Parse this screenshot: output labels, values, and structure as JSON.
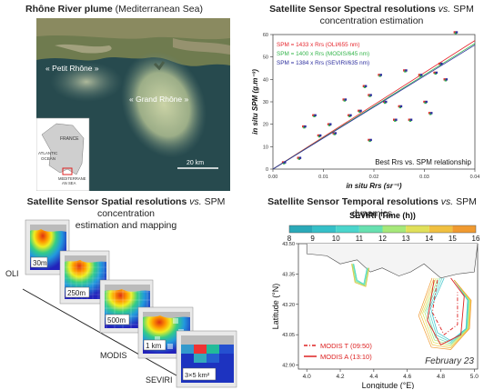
{
  "panels": {
    "tl": {
      "title_bold": "Rhône River plume",
      "title_rest": " (Mediterranean Sea)",
      "label_petit": "« Petit Rhône »",
      "label_grand": "« Grand Rhône »",
      "inset_france": "FRANCE",
      "inset_atlantic_1": "ATLANTIC",
      "inset_atlantic_2": "OCEAN",
      "inset_med_1": "MEDITERRANE",
      "inset_med_2": "AN SEA",
      "scale": "20 km"
    },
    "tr": {
      "title_bold": "Satellite Sensor Spectral resolutions",
      "title_vs": " vs.",
      "title_rest": " SPM",
      "title_line2": "concentration estimation",
      "legend": [
        {
          "text": "SPM = 1433 x Rrs (OLI/655 nm)",
          "color": "#e6262d"
        },
        {
          "text": "SPM = 1400 x Rrs (MODIS/645 nm)",
          "color": "#33b44a"
        },
        {
          "text": "SPM = 1384 x Rrs (SEVIRI/635 nm)",
          "color": "#2c2e9e"
        }
      ],
      "caption": "Best Rrs vs. SPM relationship",
      "ylabel": "in situ SPM (g.m⁻³)",
      "xlabel": "in situ Rrs (sr⁻¹)"
    },
    "bl": {
      "title_bold": "Satellite Sensor Spatial resolutions",
      "title_vs": " vs.",
      "title_rest": " SPM concentration",
      "title_line2": "estimation and mapping",
      "sensor_oli": "OLI",
      "sensor_modis": "MODIS",
      "sensor_seviri": "SEVIRI",
      "res": [
        "30m",
        "250m",
        "500m",
        "1 km",
        "3×5 km²"
      ]
    },
    "br": {
      "title_bold": "Satellite Sensor Temporal resolutions",
      "title_vs": " vs.",
      "title_rest": " SPM dynamics",
      "colorbar_title": "SEVIRI (Time (h))",
      "ylabel": "Latitude (°N)",
      "xlabel": "Longitude (°E)",
      "legend_t": "MODIS T (09:50)",
      "legend_a": "MODIS A (13:10)",
      "date": "February 23",
      "accent_red": "#d22"
    }
  },
  "chart_data": [
    {
      "type": "scatter",
      "title": "Satellite Sensor Spectral resolutions vs. SPM concentration estimation",
      "xlabel": "in situ Rrs (sr⁻¹)",
      "ylabel": "in situ SPM (g.m⁻³)",
      "xlim": [
        0,
        0.04
      ],
      "ylim": [
        0,
        60
      ],
      "xticks": [
        "0.00",
        "0.01",
        "0.02",
        "0.03",
        "0.04"
      ],
      "yticks": [
        "0",
        "10",
        "20",
        "30",
        "40",
        "50",
        "60"
      ],
      "series": [
        {
          "name": "SPM = 1433 x Rrs (OLI/655 nm)",
          "color": "#e6262d",
          "slope": 1433,
          "points": [
            [
              0.002,
              3
            ],
            [
              0.005,
              5
            ],
            [
              0.006,
              19
            ],
            [
              0.008,
              24
            ],
            [
              0.009,
              15
            ],
            [
              0.011,
              20
            ],
            [
              0.012,
              16
            ],
            [
              0.014,
              31
            ],
            [
              0.015,
              24
            ],
            [
              0.017,
              26
            ],
            [
              0.018,
              37
            ],
            [
              0.019,
              33
            ],
            [
              0.019,
              13
            ],
            [
              0.021,
              42
            ],
            [
              0.022,
              30
            ],
            [
              0.024,
              22
            ],
            [
              0.025,
              28
            ],
            [
              0.026,
              44
            ],
            [
              0.027,
              22
            ],
            [
              0.029,
              42
            ],
            [
              0.03,
              30
            ],
            [
              0.031,
              25
            ],
            [
              0.032,
              43
            ],
            [
              0.033,
              47
            ],
            [
              0.034,
              40
            ],
            [
              0.036,
              61
            ]
          ]
        },
        {
          "name": "SPM = 1400 x Rrs (MODIS/645 nm)",
          "color": "#33b44a",
          "slope": 1400,
          "points": [
            [
              0.0022,
              2.6
            ],
            [
              0.0052,
              4.6
            ],
            [
              0.0062,
              18.6
            ],
            [
              0.0082,
              23.6
            ],
            [
              0.0092,
              14.6
            ],
            [
              0.0112,
              19.6
            ],
            [
              0.0122,
              15.6
            ],
            [
              0.0142,
              30.6
            ],
            [
              0.0152,
              23.6
            ],
            [
              0.0172,
              25.6
            ],
            [
              0.0182,
              36.6
            ],
            [
              0.0192,
              32.6
            ],
            [
              0.0192,
              12.6
            ],
            [
              0.0212,
              41.6
            ],
            [
              0.0222,
              29.6
            ],
            [
              0.0242,
              21.6
            ],
            [
              0.0252,
              27.6
            ],
            [
              0.0262,
              43.6
            ],
            [
              0.0272,
              21.6
            ],
            [
              0.0292,
              41.6
            ],
            [
              0.0302,
              29.6
            ],
            [
              0.0312,
              24.6
            ],
            [
              0.0322,
              42.6
            ],
            [
              0.0332,
              46.6
            ],
            [
              0.0342,
              39.6
            ],
            [
              0.0362,
              60.6
            ]
          ]
        },
        {
          "name": "SPM = 1384 x Rrs (SEVIRI/635 nm)",
          "color": "#2c2e9e",
          "slope": 1384,
          "points": [
            [
              0.0024,
              3
            ],
            [
              0.0054,
              5
            ],
            [
              0.0064,
              19
            ],
            [
              0.0084,
              24
            ],
            [
              0.0094,
              15
            ],
            [
              0.0114,
              20
            ],
            [
              0.0124,
              16
            ],
            [
              0.0144,
              31
            ],
            [
              0.0154,
              24
            ],
            [
              0.0174,
              26
            ],
            [
              0.0184,
              37
            ],
            [
              0.0194,
              33
            ],
            [
              0.0194,
              13
            ],
            [
              0.0214,
              42
            ],
            [
              0.0224,
              30
            ],
            [
              0.0244,
              22
            ],
            [
              0.0254,
              28
            ],
            [
              0.0264,
              44
            ],
            [
              0.0274,
              22
            ],
            [
              0.0294,
              42
            ],
            [
              0.0304,
              30
            ],
            [
              0.0314,
              25
            ],
            [
              0.0324,
              43
            ],
            [
              0.0334,
              47
            ],
            [
              0.0344,
              40
            ],
            [
              0.0364,
              61
            ]
          ]
        }
      ]
    },
    {
      "type": "line",
      "title": "Satellite Sensor Temporal resolutions vs. SPM dynamics",
      "xlabel": "Longitude (°E)",
      "ylabel": "Latitude (°N)",
      "xlim": [
        3.95,
        5.02
      ],
      "ylim": [
        42.88,
        43.5
      ],
      "xticks": [
        "4.0",
        "4.2",
        "4.4",
        "4.6",
        "4.8",
        "5.0"
      ],
      "yticks": [
        "42.90",
        "43.05",
        "43.20",
        "43.35",
        "43.50"
      ],
      "colorbar": {
        "label": "SEVIRI (Time (h))",
        "ticks": [
          "8",
          "9",
          "10",
          "11",
          "12",
          "13",
          "14",
          "15",
          "16"
        ],
        "range": [
          8,
          16
        ]
      },
      "series": [
        {
          "name": "MODIS T (09:50)",
          "style": "dash-dot",
          "color": "#d22"
        },
        {
          "name": "MODIS A (13:10)",
          "style": "solid",
          "color": "#d22"
        }
      ]
    }
  ]
}
